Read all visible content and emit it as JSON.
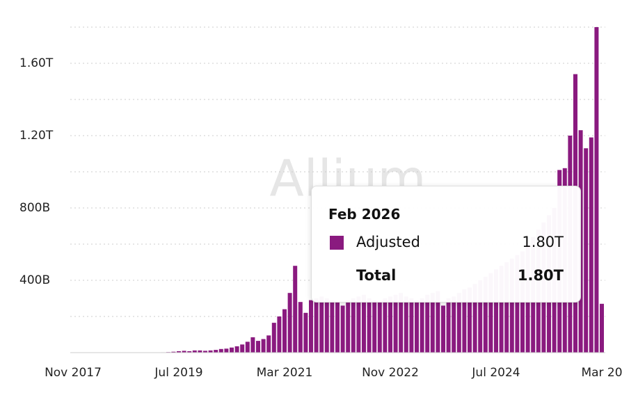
{
  "chart_data": {
    "type": "bar",
    "watermark": "Allium",
    "categories": [
      "Nov 2017",
      null,
      null,
      null,
      null,
      null,
      null,
      null,
      null,
      null,
      null,
      null,
      null,
      null,
      null,
      null,
      null,
      null,
      null,
      null,
      "Jul 2019",
      null,
      null,
      null,
      null,
      null,
      null,
      null,
      null,
      null,
      null,
      null,
      null,
      null,
      null,
      null,
      null,
      null,
      null,
      null,
      "Mar 2021",
      null,
      null,
      null,
      null,
      null,
      null,
      null,
      null,
      null,
      null,
      null,
      null,
      null,
      null,
      null,
      null,
      null,
      null,
      null,
      "Nov 2022",
      null,
      null,
      null,
      null,
      null,
      null,
      null,
      null,
      null,
      null,
      null,
      null,
      null,
      null,
      null,
      null,
      null,
      null,
      null,
      "Jul 2024",
      null,
      null,
      null,
      null,
      null,
      null,
      null,
      null,
      null,
      null,
      null,
      null,
      null,
      null,
      null,
      null,
      null,
      null,
      null,
      "Mar 20"
    ],
    "series": [
      {
        "name": "Adjusted",
        "color": "#8a1a7f",
        "values": [
          0,
          0,
          0,
          0,
          0,
          0,
          0,
          0,
          0,
          0,
          0,
          0,
          0,
          0,
          0,
          1,
          1,
          2,
          3,
          5,
          8,
          10,
          8,
          12,
          12,
          10,
          12,
          15,
          20,
          22,
          28,
          35,
          45,
          60,
          85,
          65,
          75,
          95,
          165,
          200,
          240,
          330,
          480,
          280,
          220,
          290,
          300,
          310,
          300,
          290,
          280,
          260,
          290,
          300,
          310,
          320,
          300,
          290,
          280,
          300,
          310,
          320,
          330,
          310,
          300,
          290,
          300,
          320,
          330,
          340,
          260,
          300,
          310,
          330,
          350,
          360,
          380,
          400,
          420,
          440,
          460,
          480,
          500,
          520,
          540,
          560,
          600,
          640,
          680,
          720,
          760,
          800,
          1010,
          1020,
          1200,
          1540,
          1230,
          1130,
          1190,
          1800,
          270
        ]
      }
    ],
    "ylim": [
      0,
      1800
    ],
    "yticks": [
      {
        "value": 400,
        "label": "400B"
      },
      {
        "value": 800,
        "label": "800B"
      },
      {
        "value": 1200,
        "label": "1.20T"
      },
      {
        "value": 1600,
        "label": "1.60T"
      }
    ],
    "grid_lines": [
      200,
      600,
      1000,
      1400,
      1800
    ],
    "grid": true,
    "tooltip": {
      "title": "Feb 2026",
      "rows": [
        {
          "name": "Adjusted",
          "value": "1.80T"
        },
        {
          "name": "Total",
          "value": "1.80T"
        }
      ]
    }
  }
}
